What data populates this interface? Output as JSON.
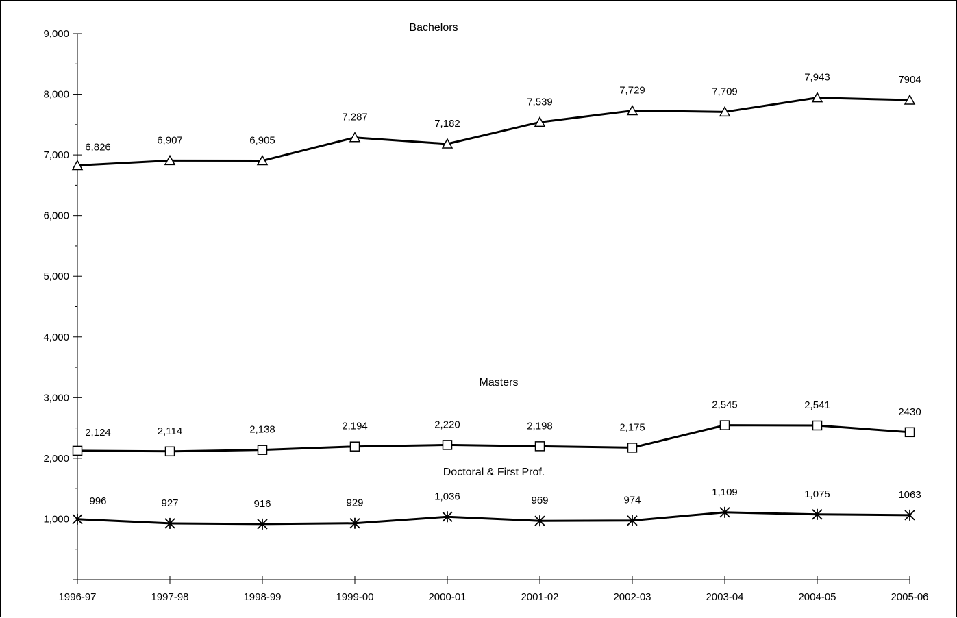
{
  "chart_data": {
    "type": "line",
    "title": "",
    "xlabel": "",
    "ylabel": "",
    "categories": [
      "1996-97",
      "1997-98",
      "1998-99",
      "1999-00",
      "2000-01",
      "2001-02",
      "2002-03",
      "2003-04",
      "2004-05",
      "2005-06"
    ],
    "ylim": [
      0,
      9000
    ],
    "yticks": [
      1000,
      2000,
      3000,
      4000,
      5000,
      6000,
      7000,
      8000,
      9000
    ],
    "ytick_labels": [
      "1,000",
      "2,000",
      "3,000",
      "4,000",
      "5,000",
      "6,000",
      "7,000",
      "8,000",
      "9,000"
    ],
    "grid": false,
    "legend": "none",
    "series": [
      {
        "name": "Bachelors",
        "marker": "triangle",
        "values": [
          6826,
          6907,
          6905,
          7287,
          7182,
          7539,
          7729,
          7709,
          7943,
          7904
        ],
        "labels": [
          "6,826",
          "6,907",
          "6,905",
          "7,287",
          "7,182",
          "7,539",
          "7,729",
          "7,709",
          "7,943",
          "7904"
        ]
      },
      {
        "name": "Masters",
        "marker": "square",
        "values": [
          2124,
          2114,
          2138,
          2194,
          2220,
          2198,
          2175,
          2545,
          2541,
          2430
        ],
        "labels": [
          "2,124",
          "2,114",
          "2,138",
          "2,194",
          "2,220",
          "2,198",
          "2,175",
          "2,545",
          "2,541",
          "2430"
        ]
      },
      {
        "name": "Doctoral & First Prof.",
        "marker": "asterisk",
        "values": [
          996,
          927,
          916,
          929,
          1036,
          969,
          974,
          1109,
          1075,
          1063
        ],
        "labels": [
          "996",
          "927",
          "916",
          "929",
          "1,036",
          "969",
          "974",
          "1,109",
          "1,075",
          "1063"
        ]
      }
    ],
    "line_color": "#000000",
    "marker_fill": "#ffffff"
  }
}
